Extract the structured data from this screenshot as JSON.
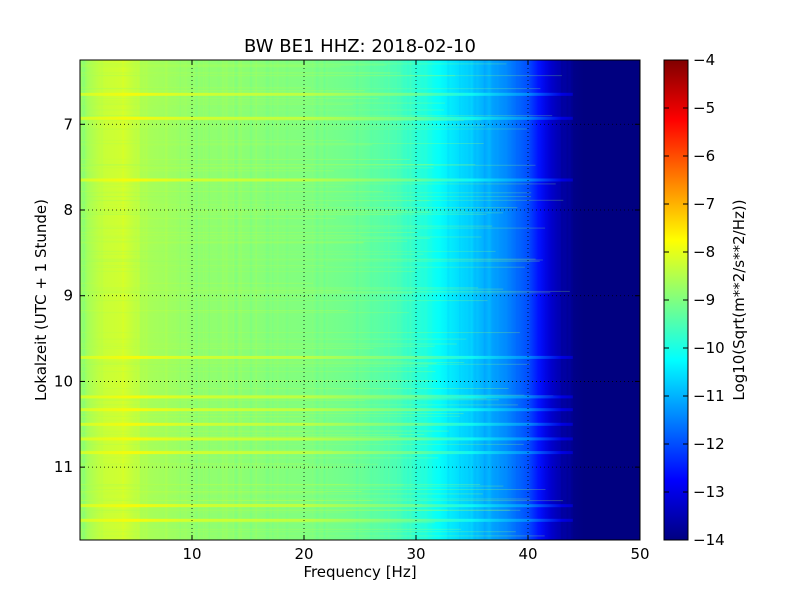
{
  "chart_data": {
    "type": "heatmap",
    "title": "BW BE1 HHZ: 2018-02-10",
    "xlabel": "Frequency [Hz]",
    "ylabel": "Lokalzeit (UTC + 1 Stunde)",
    "xlim": [
      0,
      50
    ],
    "ylim": [
      6.25,
      11.85
    ],
    "y_axis_inverted": true,
    "x_ticks": [
      10,
      20,
      30,
      40,
      50
    ],
    "y_ticks": [
      7,
      8,
      9,
      10,
      11
    ],
    "grid": true,
    "colormap": "jet",
    "colorbar": {
      "label": "Log10(Sqrt(m**2/s**2/Hz))",
      "range": [
        -14,
        -4
      ],
      "ticks": [
        -4,
        -5,
        -6,
        -7,
        -8,
        -9,
        -10,
        -11,
        -12,
        -13,
        -14
      ]
    },
    "frequency_profile": {
      "x": [
        0,
        2,
        4,
        6,
        10,
        15,
        20,
        25,
        28,
        30,
        32,
        34,
        36,
        38,
        40,
        41,
        42,
        43,
        44,
        45,
        50
      ],
      "values": [
        -8.8,
        -8.3,
        -8.2,
        -8.6,
        -8.8,
        -8.9,
        -9.0,
        -9.2,
        -9.5,
        -9.8,
        -10.2,
        -10.6,
        -11.0,
        -11.4,
        -12.0,
        -12.6,
        -13.2,
        -13.6,
        -13.9,
        -14.0,
        -14.0
      ]
    },
    "horizontal_streak_times": [
      6.65,
      6.93,
      7.65,
      9.72,
      10.18,
      10.33,
      10.5,
      10.67,
      10.83,
      11.45,
      11.62
    ],
    "colors": {
      "dark_blue": "#00007f",
      "blue": "#0000ff",
      "cyan": "#00ffff",
      "yellow": "#ffff00",
      "red": "#ff0000",
      "dark_red": "#7f0000"
    }
  }
}
